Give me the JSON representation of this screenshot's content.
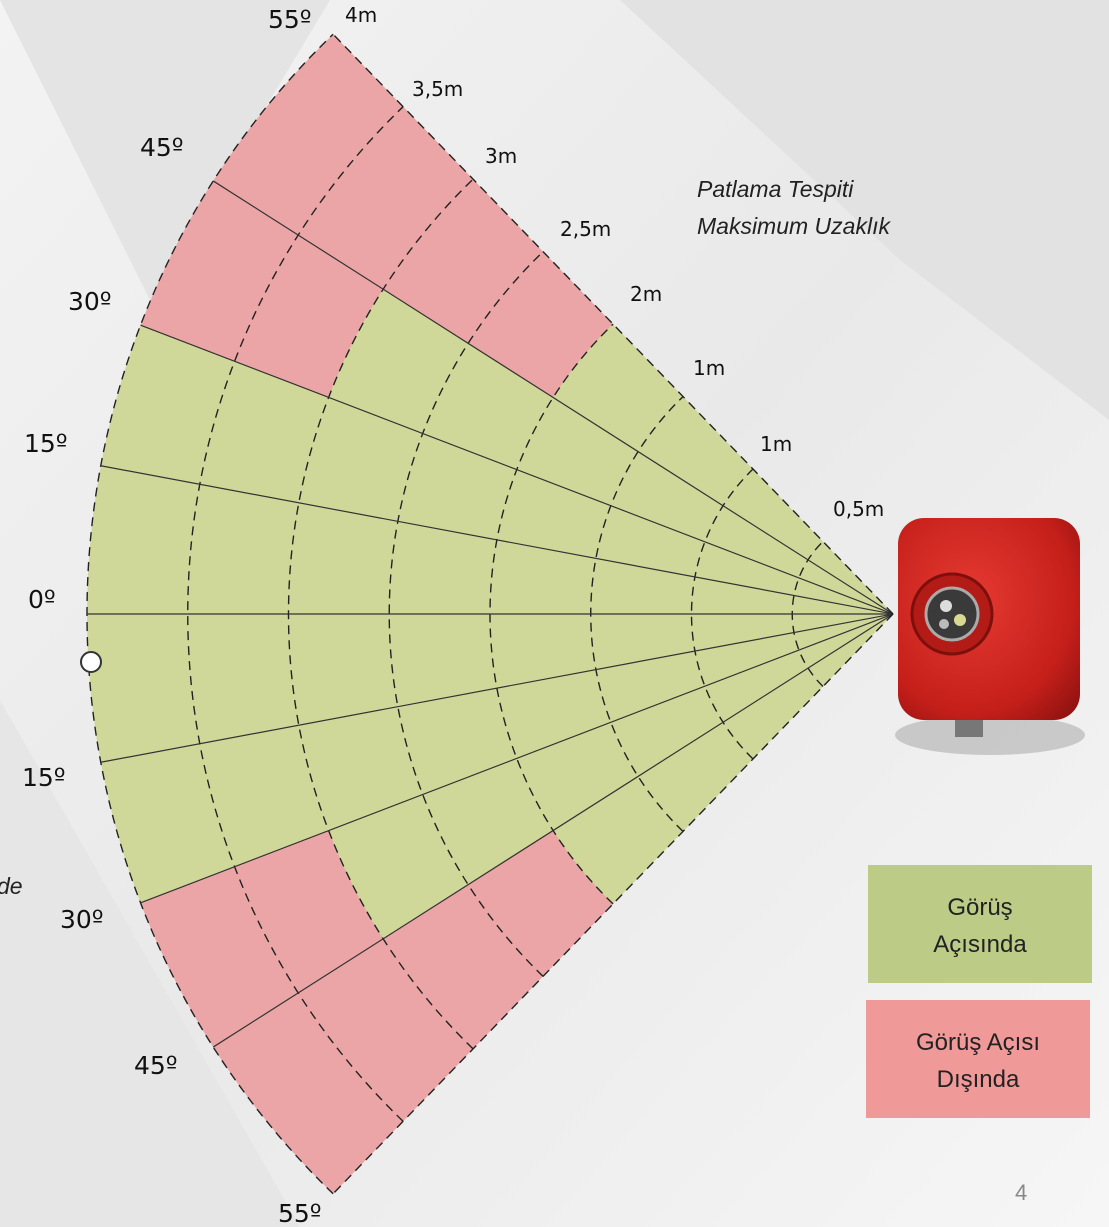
{
  "angle_labels": [
    "55º",
    "45º",
    "30º",
    "15º",
    "0º",
    "15º",
    "30º",
    "45º",
    "55º"
  ],
  "distance_labels": [
    "4m",
    "3,5m",
    "3m",
    "2,5m",
    "2m",
    "1m",
    "1m",
    "0,5m"
  ],
  "annotation": {
    "lines": [
      "Patlama Tespiti",
      "Maksimum Uzaklık"
    ]
  },
  "cropped_text": "de",
  "legend": [
    {
      "lines": [
        "Görüş",
        "Açısında"
      ]
    },
    {
      "lines": [
        "Görüş Açısı",
        "Dışında"
      ]
    }
  ],
  "page_number": "4"
}
